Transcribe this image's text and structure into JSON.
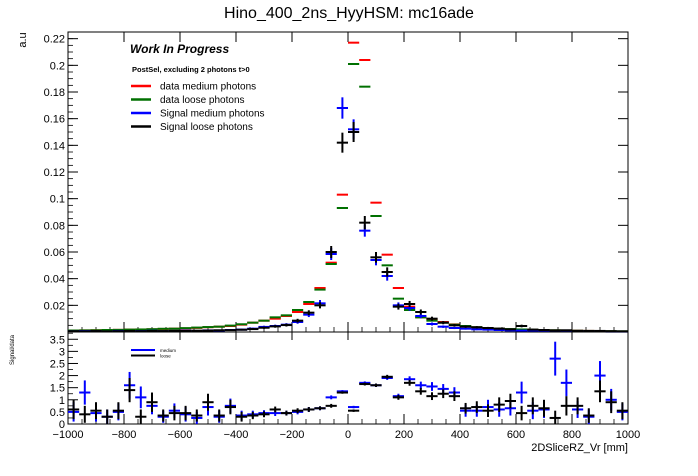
{
  "title": "Hino_400_2ns_HyyHSM: mc16ade",
  "chart_data": [
    {
      "type": "scatter",
      "ylabel": "a.u",
      "xlim": [
        -1000,
        1000
      ],
      "ylim": [
        0,
        0.225
      ],
      "y_ticks": [
        "0.02",
        "0.04",
        "0.06",
        "0.08",
        "0.1",
        "0.12",
        "0.14",
        "0.16",
        "0.18",
        "0.2",
        "0.22"
      ],
      "y_tick_values": [
        0.02,
        0.04,
        0.06,
        0.08,
        0.1,
        0.12,
        0.14,
        0.16,
        0.18,
        0.2,
        0.22
      ],
      "annotation_title": "Work In Progress",
      "annotation_sub": "PostSel, excluding 2 photons t>0",
      "legend_position": "top-left",
      "bin_width": 40,
      "series": [
        {
          "name": "data medium photons",
          "color": "#ff0000",
          "errors": false,
          "x": [
            -980,
            -940,
            -900,
            -860,
            -820,
            -780,
            -740,
            -700,
            -660,
            -620,
            -580,
            -540,
            -500,
            -460,
            -420,
            -380,
            -340,
            -300,
            -260,
            -220,
            -180,
            -140,
            -100,
            -60,
            -20,
            20,
            60,
            100,
            140,
            180,
            220,
            260,
            300,
            340,
            380,
            420,
            460,
            500,
            540,
            580,
            620,
            660,
            700,
            740,
            780,
            820,
            860,
            900,
            940,
            980
          ],
          "y": [
            0.001,
            0.0012,
            0.0013,
            0.0014,
            0.0016,
            0.0018,
            0.0019,
            0.002,
            0.0023,
            0.0025,
            0.0027,
            0.0031,
            0.0036,
            0.004,
            0.0045,
            0.0055,
            0.007,
            0.0085,
            0.01,
            0.012,
            0.015,
            0.021,
            0.033,
            0.052,
            0.103,
            0.217,
            0.204,
            0.097,
            0.058,
            0.033,
            0.019,
            0.011,
            0.0095,
            0.0075,
            0.0057,
            0.0045,
            0.0035,
            0.003,
            0.0025,
            0.002,
            0.0018,
            0.0016,
            0.0015,
            0.0012,
            0.001,
            0.0009,
            0.0008,
            0.0006,
            0.0005,
            0.0004
          ]
        },
        {
          "name": "data loose photons",
          "color": "#007000",
          "errors": false,
          "x": [
            -980,
            -940,
            -900,
            -860,
            -820,
            -780,
            -740,
            -700,
            -660,
            -620,
            -580,
            -540,
            -500,
            -460,
            -420,
            -380,
            -340,
            -300,
            -260,
            -220,
            -180,
            -140,
            -100,
            -60,
            -20,
            20,
            60,
            100,
            140,
            180,
            220,
            260,
            300,
            340,
            380,
            420,
            460,
            500,
            540,
            580,
            620,
            660,
            700,
            740,
            780,
            820,
            860,
            900,
            940,
            980
          ],
          "y": [
            0.0011,
            0.0012,
            0.0013,
            0.0015,
            0.0016,
            0.0018,
            0.0019,
            0.0021,
            0.0024,
            0.0025,
            0.0029,
            0.0033,
            0.0037,
            0.004,
            0.0048,
            0.0058,
            0.007,
            0.0085,
            0.011,
            0.0125,
            0.0165,
            0.0225,
            0.0318,
            0.051,
            0.093,
            0.201,
            0.184,
            0.087,
            0.05,
            0.025,
            0.0165,
            0.011,
            0.0085,
            0.007,
            0.0055,
            0.0045,
            0.0036,
            0.003,
            0.0025,
            0.0022,
            0.0019,
            0.0017,
            0.0015,
            0.0013,
            0.001,
            0.0009,
            0.0008,
            0.0007,
            0.0006,
            0.0005
          ]
        },
        {
          "name": "Signal medium photons",
          "color": "#0000ff",
          "errors": true,
          "x": [
            -980,
            -940,
            -900,
            -860,
            -820,
            -780,
            -740,
            -700,
            -660,
            -620,
            -580,
            -540,
            -500,
            -460,
            -420,
            -380,
            -340,
            -300,
            -260,
            -220,
            -180,
            -140,
            -100,
            -60,
            -20,
            20,
            60,
            100,
            140,
            180,
            220,
            260,
            300,
            340,
            380,
            420,
            460,
            500,
            540,
            580,
            620,
            660,
            700,
            740,
            780,
            820,
            860,
            900,
            940,
            980
          ],
          "y": [
            0.0005,
            0.0007,
            0.0006,
            0.0004,
            0.0008,
            0.0005,
            0.0007,
            0.0009,
            0.0006,
            0.0008,
            0.001,
            0.0007,
            0.0012,
            0.0011,
            0.0015,
            0.0018,
            0.0025,
            0.0038,
            0.0045,
            0.0055,
            0.0075,
            0.013,
            0.0215,
            0.0585,
            0.168,
            0.152,
            0.076,
            0.054,
            0.042,
            0.02,
            0.018,
            0.012,
            0.006,
            0.004,
            0.003,
            0.0025,
            0.002,
            0.0018,
            0.0015,
            0.0012,
            0.001,
            0.0008,
            0.0007,
            0.0006,
            0.0005,
            0.0005,
            0.0004,
            0.0004,
            0.0003,
            0.0003
          ],
          "err": [
            0.0004,
            0.0004,
            0.0004,
            0.0003,
            0.0004,
            0.0003,
            0.0004,
            0.0004,
            0.0003,
            0.0004,
            0.0004,
            0.0003,
            0.0005,
            0.0005,
            0.0005,
            0.0006,
            0.0007,
            0.0009,
            0.001,
            0.0011,
            0.0013,
            0.0018,
            0.0025,
            0.0045,
            0.008,
            0.0075,
            0.0045,
            0.004,
            0.0035,
            0.0022,
            0.002,
            0.0016,
            0.0011,
            0.0009,
            0.0008,
            0.0007,
            0.0006,
            0.0006,
            0.0006,
            0.0005,
            0.0005,
            0.0004,
            0.0004,
            0.0004,
            0.0003,
            0.0003,
            0.0003,
            0.0003,
            0.0002,
            0.0002
          ]
        },
        {
          "name": "Signal loose photons",
          "color": "#000000",
          "errors": true,
          "x": [
            -980,
            -940,
            -900,
            -860,
            -820,
            -780,
            -740,
            -700,
            -660,
            -620,
            -580,
            -540,
            -500,
            -460,
            -420,
            -380,
            -340,
            -300,
            -260,
            -220,
            -180,
            -140,
            -100,
            -60,
            -20,
            20,
            60,
            100,
            140,
            180,
            220,
            260,
            300,
            340,
            380,
            420,
            460,
            500,
            540,
            580,
            620,
            660,
            700,
            740,
            780,
            820,
            860,
            900,
            940,
            980
          ],
          "y": [
            0.0006,
            0.0005,
            0.0007,
            0.0005,
            0.0006,
            0.0008,
            0.0006,
            0.0008,
            0.0007,
            0.0009,
            0.0008,
            0.001,
            0.0011,
            0.0013,
            0.0014,
            0.0017,
            0.0022,
            0.0032,
            0.0042,
            0.0052,
            0.0085,
            0.0145,
            0.02,
            0.06,
            0.142,
            0.15,
            0.082,
            0.056,
            0.045,
            0.019,
            0.021,
            0.015,
            0.01,
            0.007,
            0.005,
            0.004,
            0.0035,
            0.003,
            0.0025,
            0.002,
            0.0045,
            0.0018,
            0.0015,
            0.0012,
            0.0013,
            0.0009,
            0.0008,
            0.0008,
            0.0006,
            0.0005
          ],
          "err": [
            0.0004,
            0.0004,
            0.0004,
            0.0004,
            0.0004,
            0.0004,
            0.0004,
            0.0004,
            0.0004,
            0.0004,
            0.0004,
            0.0004,
            0.0005,
            0.0005,
            0.0005,
            0.0006,
            0.0007,
            0.0008,
            0.001,
            0.0011,
            0.0014,
            0.0018,
            0.0023,
            0.0045,
            0.0075,
            0.0075,
            0.005,
            0.004,
            0.0035,
            0.0022,
            0.0023,
            0.0019,
            0.0015,
            0.0012,
            0.001,
            0.0009,
            0.0009,
            0.0008,
            0.0007,
            0.0007,
            0.001,
            0.0006,
            0.0006,
            0.0005,
            0.0005,
            0.0004,
            0.0004,
            0.0004,
            0.0004,
            0.0003
          ]
        }
      ]
    },
    {
      "type": "scatter",
      "ylabel": "Signal/data",
      "xlabel": "2DSliceRZ_Vr [mm]",
      "xlim": [
        -1000,
        1000
      ],
      "ylim": [
        0,
        3.8
      ],
      "x_ticks": [
        "−1000",
        "−800",
        "−600",
        "−400",
        "−200",
        "0",
        "200",
        "400",
        "600",
        "800",
        "1000"
      ],
      "x_tick_values": [
        -1000,
        -800,
        -600,
        -400,
        -200,
        0,
        200,
        400,
        600,
        800,
        1000
      ],
      "y_ticks": [
        "0",
        "0.5",
        "1",
        "1.5",
        "2",
        "2.5",
        "3",
        "3.5"
      ],
      "y_tick_values": [
        0,
        0.5,
        1,
        1.5,
        2,
        2.5,
        3,
        3.5
      ],
      "legend_position": "top-left",
      "bin_width": 40,
      "series": [
        {
          "name": "medium",
          "color": "#0000ff",
          "x": [
            -980,
            -940,
            -900,
            -860,
            -820,
            -780,
            -740,
            -700,
            -660,
            -620,
            -580,
            -540,
            -500,
            -460,
            -420,
            -380,
            -340,
            -300,
            -260,
            -220,
            -180,
            -140,
            -100,
            -60,
            -20,
            20,
            60,
            100,
            140,
            180,
            220,
            260,
            300,
            340,
            380,
            420,
            460,
            500,
            540,
            580,
            620,
            660,
            700,
            740,
            780,
            820,
            860,
            900,
            940,
            980
          ],
          "y": [
            0.5,
            1.3,
            0.45,
            0.3,
            0.5,
            1.6,
            1.1,
            0.75,
            0.3,
            0.55,
            0.4,
            0.25,
            0.7,
            0.3,
            0.75,
            0.35,
            0.4,
            0.45,
            0.45,
            0.45,
            0.5,
            0.6,
            0.65,
            1.1,
            1.35,
            0.7,
            1.7,
            1.6,
            1.9,
            1.15,
            1.85,
            1.6,
            1.55,
            1.45,
            1.3,
            0.55,
            0.55,
            0.7,
            0.6,
            0.65,
            1.3,
            0.55,
            0.6,
            2.7,
            1.7,
            0.6,
            0.3,
            2.0,
            1.0,
            0.5
          ],
          "err": [
            0.4,
            0.5,
            0.35,
            0.3,
            0.35,
            0.55,
            0.45,
            0.35,
            0.25,
            0.3,
            0.3,
            0.25,
            0.35,
            0.25,
            0.3,
            0.2,
            0.15,
            0.12,
            0.12,
            0.1,
            0.1,
            0.1,
            0.08,
            0.08,
            0.05,
            0.05,
            0.06,
            0.07,
            0.08,
            0.1,
            0.12,
            0.15,
            0.18,
            0.2,
            0.22,
            0.25,
            0.25,
            0.3,
            0.3,
            0.3,
            0.45,
            0.35,
            0.35,
            0.7,
            0.55,
            0.35,
            0.3,
            0.6,
            0.45,
            0.35
          ]
        },
        {
          "name": "loose",
          "color": "#000000",
          "x": [
            -980,
            -940,
            -900,
            -860,
            -820,
            -780,
            -740,
            -700,
            -660,
            -620,
            -580,
            -540,
            -500,
            -460,
            -420,
            -380,
            -340,
            -300,
            -260,
            -220,
            -180,
            -140,
            -100,
            -60,
            -20,
            20,
            60,
            100,
            140,
            180,
            220,
            260,
            300,
            340,
            380,
            420,
            460,
            500,
            540,
            580,
            620,
            660,
            700,
            740,
            780,
            820,
            860,
            900,
            940,
            980
          ],
          "y": [
            0.6,
            0.4,
            0.55,
            0.3,
            0.55,
            1.4,
            0.3,
            0.9,
            0.35,
            0.45,
            0.45,
            0.35,
            0.9,
            0.35,
            0.7,
            0.3,
            0.35,
            0.4,
            0.6,
            0.45,
            0.55,
            0.6,
            0.65,
            0.75,
            1.3,
            0.55,
            1.65,
            1.6,
            1.95,
            1.1,
            1.7,
            1.35,
            1.15,
            1.25,
            1.15,
            0.65,
            0.7,
            0.55,
            0.8,
            0.95,
            0.45,
            0.75,
            0.65,
            0.25,
            0.75,
            0.75,
            0.35,
            1.35,
            0.9,
            0.55
          ],
          "err": [
            0.4,
            0.35,
            0.35,
            0.3,
            0.35,
            0.5,
            0.3,
            0.4,
            0.25,
            0.3,
            0.3,
            0.25,
            0.35,
            0.25,
            0.3,
            0.2,
            0.15,
            0.12,
            0.12,
            0.1,
            0.1,
            0.1,
            0.08,
            0.08,
            0.05,
            0.05,
            0.06,
            0.07,
            0.08,
            0.1,
            0.12,
            0.14,
            0.16,
            0.18,
            0.2,
            0.22,
            0.24,
            0.26,
            0.3,
            0.3,
            0.3,
            0.35,
            0.35,
            0.3,
            0.4,
            0.35,
            0.3,
            0.45,
            0.45,
            0.35
          ]
        }
      ]
    }
  ]
}
